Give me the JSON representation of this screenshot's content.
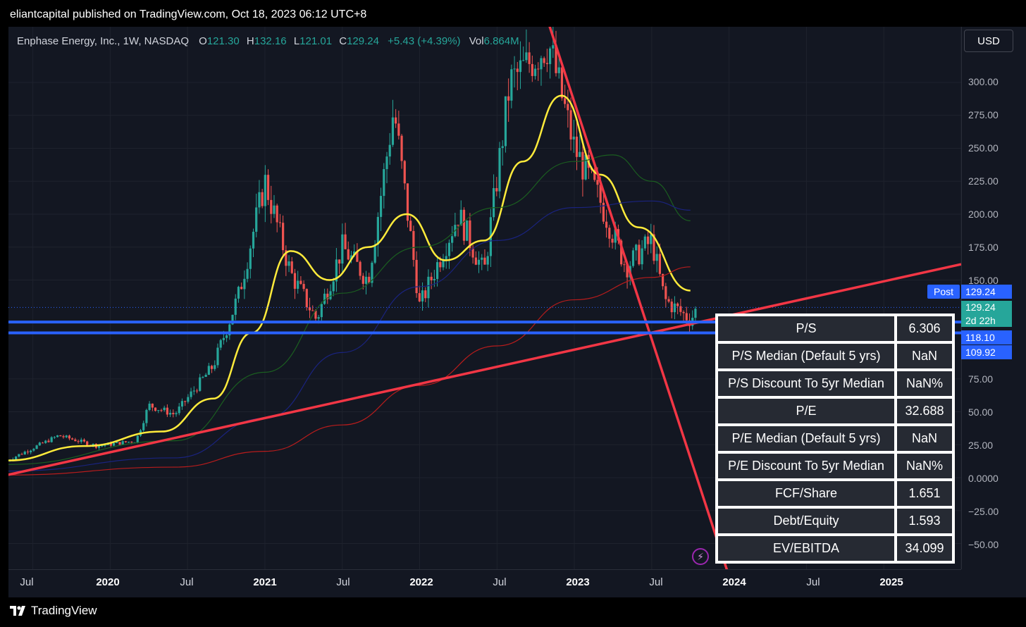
{
  "header": {
    "publish_line": "eliantcapital published on TradingView.com, Oct 18, 2023 06:12 UTC+8"
  },
  "legend": {
    "symbol": "Enphase Energy, Inc., 1W, NASDAQ",
    "open_key": "O",
    "open": "121.30",
    "high_key": "H",
    "high": "132.16",
    "low_key": "L",
    "low": "121.01",
    "close_key": "C",
    "close": "129.24",
    "change": "+5.43 (+4.39%)",
    "vol_key": "Vol",
    "vol": "6.864M"
  },
  "currency_button": "USD",
  "price_labels": {
    "post_tag": "Post",
    "post_value": "129.24",
    "last_value": "129.24",
    "countdown": "2d 22h",
    "level_upper": "118.10",
    "level_lower": "109.92"
  },
  "metrics_table": [
    {
      "metric": "P/S",
      "value": "6.306"
    },
    {
      "metric": "P/S Median (Default 5 yrs)",
      "value": "NaN"
    },
    {
      "metric": "P/S Discount To 5yr Median",
      "value": "NaN%"
    },
    {
      "metric": "P/E",
      "value": "32.688"
    },
    {
      "metric": "P/E Median (Default 5 yrs)",
      "value": "NaN"
    },
    {
      "metric": "P/E Discount To 5yr Median",
      "value": "NaN%"
    },
    {
      "metric": "FCF/Share",
      "value": "1.651"
    },
    {
      "metric": "Debt/Equity",
      "value": "1.593"
    },
    {
      "metric": "EV/EBITDA",
      "value": "34.099"
    }
  ],
  "footer": {
    "brand": "TradingView"
  },
  "colors": {
    "up": "#26a69a",
    "down": "#ef5350",
    "ma_yellow": "#ffeb3b",
    "ma_green": "#1b5e20",
    "ma_blue": "#1a237e",
    "ma_red": "#b71c1c",
    "trendline": "#f23645",
    "support": "#2962ff",
    "background": "#131722"
  },
  "chart_data": {
    "type": "candlestick",
    "title": "Enphase Energy, Inc., 1W, NASDAQ",
    "interval": "1W",
    "y_axis_ticks": [
      "300.00",
      "275.00",
      "250.00",
      "225.00",
      "200.00",
      "175.00",
      "150.00",
      "75.00",
      "50.00",
      "25.00",
      "0.0000",
      "−25.00",
      "−50.00"
    ],
    "x_axis_ticks": [
      "Jul",
      "2020",
      "Jul",
      "2021",
      "Jul",
      "2022",
      "Jul",
      "2023",
      "Jul",
      "2024",
      "Jul",
      "2025"
    ],
    "ylim": [
      -60,
      325
    ],
    "xlim": [
      "2019-05",
      "2025-07"
    ],
    "price_anchors": [
      {
        "x": "2019-05",
        "y": 13
      },
      {
        "x": "2019-09",
        "y": 32
      },
      {
        "x": "2019-12",
        "y": 24
      },
      {
        "x": "2020-03",
        "y": 28
      },
      {
        "x": "2020-04",
        "y": 55
      },
      {
        "x": "2020-06",
        "y": 48
      },
      {
        "x": "2020-09",
        "y": 85
      },
      {
        "x": "2020-11",
        "y": 140
      },
      {
        "x": "2021-01",
        "y": 225
      },
      {
        "x": "2021-03",
        "y": 155
      },
      {
        "x": "2021-05",
        "y": 120
      },
      {
        "x": "2021-07",
        "y": 175
      },
      {
        "x": "2021-09",
        "y": 150
      },
      {
        "x": "2021-11",
        "y": 280
      },
      {
        "x": "2022-01",
        "y": 130
      },
      {
        "x": "2022-04",
        "y": 200
      },
      {
        "x": "2022-06",
        "y": 155
      },
      {
        "x": "2022-08",
        "y": 300
      },
      {
        "x": "2022-11",
        "y": 330
      },
      {
        "x": "2023-01",
        "y": 250
      },
      {
        "x": "2023-03",
        "y": 210
      },
      {
        "x": "2023-05",
        "y": 160
      },
      {
        "x": "2023-07",
        "y": 180
      },
      {
        "x": "2023-08",
        "y": 135
      },
      {
        "x": "2023-10",
        "y": 120
      },
      {
        "x": "2023-10-18",
        "y": 129.24
      }
    ],
    "moving_averages": [
      {
        "color": "yellow",
        "points": [
          {
            "x": "2019-05",
            "y": 13
          },
          {
            "x": "2019-11",
            "y": 24
          },
          {
            "x": "2020-05",
            "y": 35
          },
          {
            "x": "2020-09",
            "y": 60
          },
          {
            "x": "2020-12",
            "y": 110
          },
          {
            "x": "2021-03",
            "y": 172
          },
          {
            "x": "2021-06",
            "y": 150
          },
          {
            "x": "2021-09",
            "y": 175
          },
          {
            "x": "2021-12",
            "y": 200
          },
          {
            "x": "2022-03",
            "y": 165
          },
          {
            "x": "2022-06",
            "y": 180
          },
          {
            "x": "2022-09",
            "y": 240
          },
          {
            "x": "2022-12",
            "y": 290
          },
          {
            "x": "2023-03",
            "y": 230
          },
          {
            "x": "2023-06",
            "y": 190
          },
          {
            "x": "2023-10",
            "y": 142
          }
        ]
      },
      {
        "color": "green",
        "points": [
          {
            "x": "2019-05",
            "y": 10
          },
          {
            "x": "2020-06",
            "y": 28
          },
          {
            "x": "2021-01",
            "y": 80
          },
          {
            "x": "2021-07",
            "y": 140
          },
          {
            "x": "2022-01",
            "y": 175
          },
          {
            "x": "2022-07",
            "y": 205
          },
          {
            "x": "2023-01",
            "y": 240
          },
          {
            "x": "2023-04",
            "y": 245
          },
          {
            "x": "2023-07",
            "y": 225
          },
          {
            "x": "2023-10",
            "y": 195
          }
        ]
      },
      {
        "color": "blue",
        "points": [
          {
            "x": "2019-05",
            "y": 5
          },
          {
            "x": "2020-06",
            "y": 15
          },
          {
            "x": "2021-01",
            "y": 45
          },
          {
            "x": "2021-07",
            "y": 95
          },
          {
            "x": "2022-01",
            "y": 145
          },
          {
            "x": "2022-07",
            "y": 180
          },
          {
            "x": "2023-01",
            "y": 205
          },
          {
            "x": "2023-07",
            "y": 210
          },
          {
            "x": "2023-10",
            "y": 203
          }
        ]
      },
      {
        "color": "red",
        "points": [
          {
            "x": "2019-05",
            "y": 2
          },
          {
            "x": "2020-06",
            "y": 8
          },
          {
            "x": "2021-01",
            "y": 20
          },
          {
            "x": "2021-07",
            "y": 40
          },
          {
            "x": "2022-01",
            "y": 70
          },
          {
            "x": "2022-07",
            "y": 100
          },
          {
            "x": "2023-01",
            "y": 135
          },
          {
            "x": "2023-07",
            "y": 152
          },
          {
            "x": "2023-10",
            "y": 160
          }
        ]
      }
    ],
    "drawings": [
      {
        "kind": "trendline",
        "from": {
          "x": "2019-05",
          "y": 2
        },
        "to": {
          "x": "2025-07",
          "y": 162
        }
      },
      {
        "kind": "trendline",
        "from": {
          "x": "2022-11",
          "y": 345
        },
        "to": {
          "x": "2024-01",
          "y": -75
        }
      },
      {
        "kind": "horizontal",
        "y": 118.1
      },
      {
        "kind": "horizontal",
        "y": 109.92
      }
    ]
  }
}
